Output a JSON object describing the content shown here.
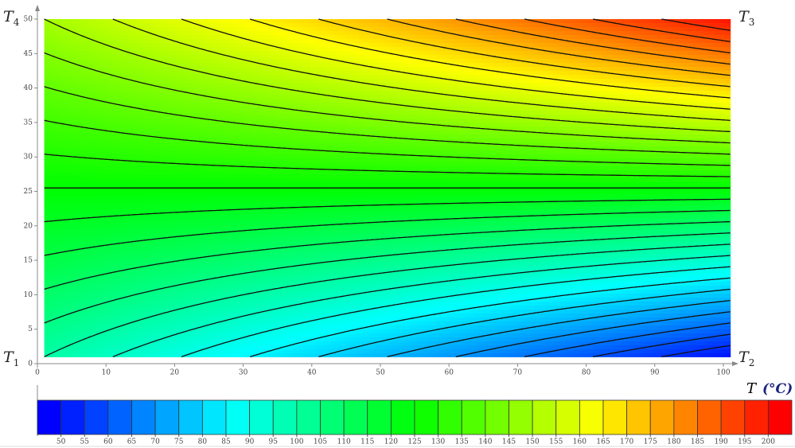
{
  "chart_data": {
    "type": "contour",
    "xlim": [
      0,
      100
    ],
    "ylim": [
      0,
      50
    ],
    "xticks": [
      0,
      10,
      20,
      30,
      40,
      50,
      60,
      70,
      80,
      90,
      100
    ],
    "yticks": [
      0,
      5,
      10,
      15,
      20,
      25,
      30,
      35,
      40,
      45,
      50
    ],
    "domain_x": [
      1,
      101
    ],
    "domain_y": [
      1,
      50
    ],
    "corner_values": [
      100,
      50,
      200,
      150
    ],
    "corner_labels": [
      {
        "name": "T",
        "sub": "1"
      },
      {
        "name": "T",
        "sub": "2"
      },
      {
        "name": "T",
        "sub": "3"
      },
      {
        "name": "T",
        "sub": "4"
      }
    ],
    "colormap": [
      "#0000ff",
      "#00ffff",
      "#00ff00",
      "#ffff00",
      "#ff0000"
    ],
    "colorbar": {
      "title": "T",
      "unit": "(°C)",
      "lim": [
        45,
        205
      ],
      "ticks": [
        50,
        55,
        60,
        65,
        70,
        75,
        80,
        85,
        90,
        95,
        100,
        105,
        110,
        115,
        120,
        125,
        130,
        135,
        140,
        145,
        150,
        155,
        160,
        165,
        170,
        175,
        180,
        185,
        190,
        195,
        200
      ]
    }
  }
}
